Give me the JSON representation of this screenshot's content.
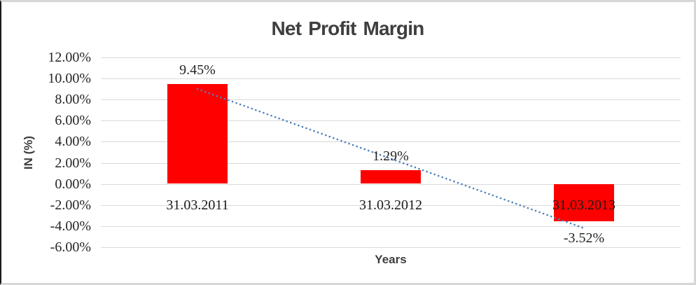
{
  "chart": {
    "title": "Net Profit Margin",
    "x_axis_title": "Years",
    "y_axis_title": "IN (%)"
  },
  "chart_data": {
    "type": "bar",
    "title": "Net Profit Margin",
    "xlabel": "Years",
    "ylabel": "IN (%)",
    "categories": [
      "31.03.2011",
      "31.03.2012",
      "31.03.2013"
    ],
    "values": [
      9.45,
      1.29,
      -3.52
    ],
    "data_labels": [
      "9.45%",
      "1.29%",
      "-3.52%"
    ],
    "ylim": [
      -6,
      12
    ],
    "ytick_step": 2,
    "ytick_labels": [
      "12.00%",
      "10.00%",
      "8.00%",
      "6.00%",
      "4.00%",
      "2.00%",
      "0.00%",
      "-2.00%",
      "-4.00%",
      "-6.00%"
    ],
    "grid": true,
    "legend": "none",
    "bar_color": "#ff0000",
    "gridline_color": "#d9d9d9",
    "label_color": "#262626",
    "title_color": "#3f3f3f",
    "trendline": {
      "type": "linear",
      "style": "dotted",
      "color": "#4f81bd",
      "start_value": 9.0,
      "end_value": -4.2
    }
  }
}
